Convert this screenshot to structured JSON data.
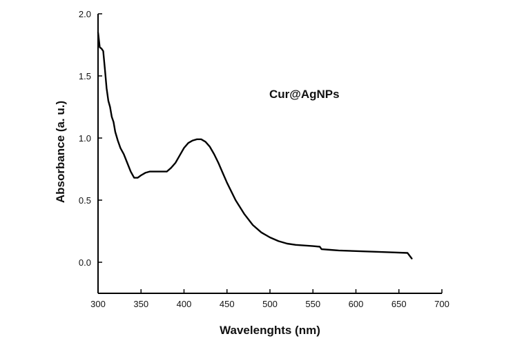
{
  "chart_data": {
    "type": "line",
    "title": "",
    "xlabel": "Wavelenghts (nm)",
    "ylabel": "Absorbance (a. u.)",
    "xlim": [
      300,
      700
    ],
    "ylim": [
      -0.25,
      2.0
    ],
    "xticks": [
      300,
      350,
      400,
      450,
      500,
      550,
      600,
      650,
      700
    ],
    "yticks": [
      0.0,
      0.5,
      1.0,
      1.5,
      2.0
    ],
    "xtick_labels": [
      "300",
      "350",
      "400",
      "450",
      "500",
      "550",
      "600",
      "650",
      "700"
    ],
    "ytick_labels": [
      "0.0",
      "0.5",
      "1.0",
      "1.5",
      "2.0"
    ],
    "annotation": "Cur@AgNPs",
    "series": [
      {
        "name": "Cur@AgNPs",
        "color": "#000000",
        "x": [
          300,
          302,
          304,
          306,
          308,
          310,
          312,
          314,
          316,
          318,
          320,
          323,
          326,
          330,
          334,
          338,
          342,
          346,
          350,
          355,
          360,
          365,
          370,
          375,
          380,
          385,
          390,
          395,
          400,
          405,
          410,
          415,
          420,
          425,
          430,
          435,
          440,
          445,
          450,
          460,
          470,
          480,
          490,
          500,
          510,
          520,
          530,
          540,
          550,
          558,
          560,
          570,
          580,
          600,
          620,
          640,
          660,
          665
        ],
        "y": [
          1.85,
          1.73,
          1.72,
          1.7,
          1.55,
          1.4,
          1.3,
          1.25,
          1.17,
          1.13,
          1.05,
          0.98,
          0.92,
          0.87,
          0.8,
          0.73,
          0.68,
          0.68,
          0.7,
          0.72,
          0.73,
          0.73,
          0.73,
          0.73,
          0.73,
          0.76,
          0.8,
          0.86,
          0.92,
          0.96,
          0.98,
          0.99,
          0.99,
          0.97,
          0.93,
          0.87,
          0.8,
          0.72,
          0.64,
          0.5,
          0.39,
          0.3,
          0.24,
          0.2,
          0.17,
          0.15,
          0.14,
          0.135,
          0.13,
          0.125,
          0.105,
          0.1,
          0.095,
          0.09,
          0.085,
          0.08,
          0.075,
          0.03
        ]
      }
    ]
  }
}
